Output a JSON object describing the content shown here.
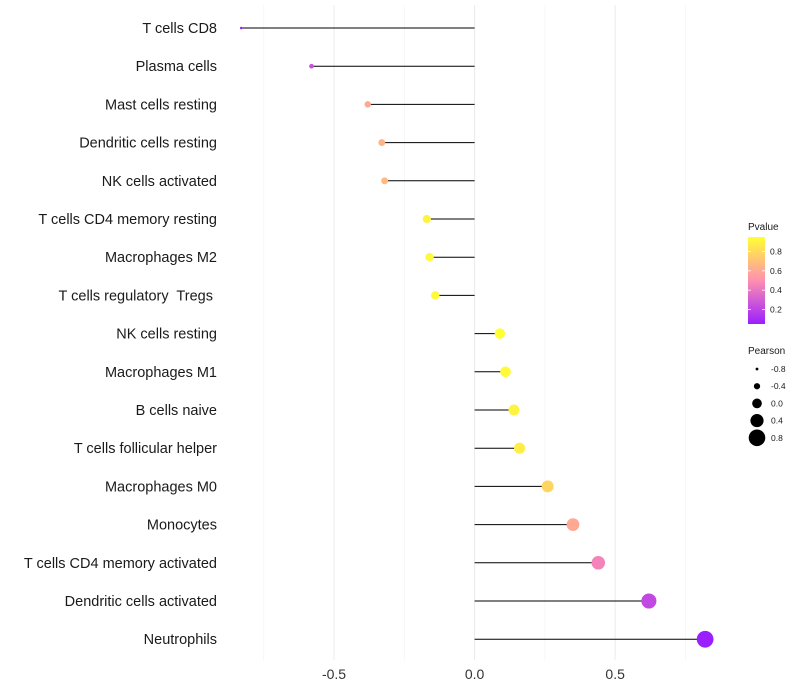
{
  "chart_data": {
    "type": "lollipop",
    "xlabel": "",
    "ylabel": "",
    "xlim": [
      -0.87,
      0.88
    ],
    "x_ticks": [
      -0.5,
      0.0,
      0.5
    ],
    "x_tick_labels": [
      "-0.5",
      "0.0",
      "0.5"
    ],
    "categories": [
      "T cells CD8",
      "Plasma cells",
      "Mast cells resting",
      "Dendritic cells resting",
      "NK cells activated",
      "T cells CD4 memory resting",
      "Macrophages M2",
      "T cells regulatory  Tregs ",
      "NK cells resting",
      "Macrophages M1",
      "B cells naive",
      "T cells follicular helper",
      "Macrophages M0",
      "Monocytes",
      "T cells CD4 memory activated",
      "Dendritic cells activated",
      "Neutrophils"
    ],
    "pearson": [
      -0.83,
      -0.58,
      -0.38,
      -0.33,
      -0.32,
      -0.17,
      -0.16,
      -0.14,
      0.09,
      0.11,
      0.14,
      0.16,
      0.26,
      0.35,
      0.44,
      0.62,
      0.82
    ],
    "pvalue": [
      0.05,
      0.25,
      0.6,
      0.65,
      0.67,
      0.9,
      0.92,
      0.93,
      0.95,
      0.93,
      0.9,
      0.88,
      0.78,
      0.6,
      0.45,
      0.22,
      0.05
    ],
    "legend": {
      "color": {
        "title": "Pvalue",
        "ticks": [
          0.8,
          0.6,
          0.4,
          0.2
        ],
        "tick_labels": [
          "0.8",
          "0.6",
          "0.4",
          "0.2"
        ],
        "range": [
          0.05,
          0.95
        ],
        "colors": [
          "#9b1fff",
          "#ff8fb0",
          "#ffff33"
        ]
      },
      "size": {
        "title": "Pearson",
        "values": [
          -0.8,
          -0.4,
          0.0,
          0.4,
          0.8
        ],
        "labels": [
          "-0.8",
          "-0.4",
          "0.0",
          "0.4",
          "0.8"
        ]
      },
      "position": "right"
    },
    "grid": true
  }
}
